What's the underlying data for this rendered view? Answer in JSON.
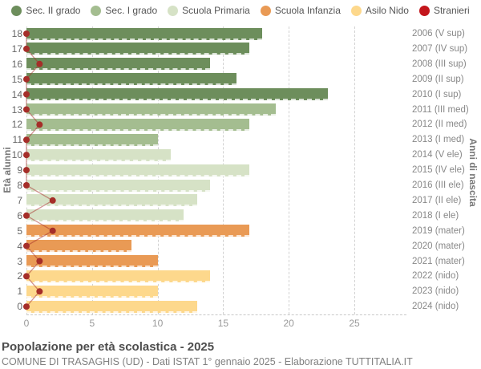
{
  "colors": {
    "sec2": "#6d8e5c",
    "sec1": "#a4bd90",
    "prim": "#d6e2c6",
    "inf": "#e99a55",
    "nido": "#fdd88c",
    "stranieri": "#c3161c",
    "stranieri_dot": "#a52e29",
    "grid": "#d2d2d2"
  },
  "legend": [
    {
      "label": "Sec. II grado",
      "color_key": "sec2"
    },
    {
      "label": "Sec. I grado",
      "color_key": "sec1"
    },
    {
      "label": "Scuola Primaria",
      "color_key": "prim"
    },
    {
      "label": "Scuola Infanzia",
      "color_key": "inf"
    },
    {
      "label": "Asilo Nido",
      "color_key": "nido"
    },
    {
      "label": "Stranieri",
      "color_key": "stranieri"
    }
  ],
  "axis_titles": {
    "left": "Età alunni",
    "right": "Anni di nascita"
  },
  "chart_data": {
    "type": "bar",
    "orientation": "horizontal",
    "title": "Popolazione per età scolastica - 2025",
    "subtitle": "COMUNE DI TRASAGHIS (UD) - Dati ISTAT 1° gennaio 2025 - Elaborazione TUTTITALIA.IT",
    "xlabel": "",
    "ylabel_left": "Età alunni",
    "ylabel_right": "Anni di nascita",
    "xlim": [
      0,
      25
    ],
    "x_ticks": [
      0,
      5,
      10,
      15,
      20,
      25
    ],
    "grid": "vertical-dashed",
    "legend_position": "top",
    "series_note": "value = total pupils per age; stranieri = foreign pupils (red dot line)",
    "rows": [
      {
        "age": 18,
        "year": "2006 (V sup)",
        "group": "sec2",
        "value": 18,
        "stranieri": 0
      },
      {
        "age": 17,
        "year": "2007 (IV sup)",
        "group": "sec2",
        "value": 17,
        "stranieri": 0
      },
      {
        "age": 16,
        "year": "2008 (III sup)",
        "group": "sec2",
        "value": 14,
        "stranieri": 1
      },
      {
        "age": 15,
        "year": "2009 (II sup)",
        "group": "sec2",
        "value": 16,
        "stranieri": 0
      },
      {
        "age": 14,
        "year": "2010 (I sup)",
        "group": "sec2",
        "value": 23,
        "stranieri": 0
      },
      {
        "age": 13,
        "year": "2011 (III med)",
        "group": "sec1",
        "value": 19,
        "stranieri": 0
      },
      {
        "age": 12,
        "year": "2012 (II med)",
        "group": "sec1",
        "value": 17,
        "stranieri": 1
      },
      {
        "age": 11,
        "year": "2013 (I med)",
        "group": "sec1",
        "value": 10,
        "stranieri": 0
      },
      {
        "age": 10,
        "year": "2014 (V ele)",
        "group": "prim",
        "value": 11,
        "stranieri": 0
      },
      {
        "age": 9,
        "year": "2015 (IV ele)",
        "group": "prim",
        "value": 17,
        "stranieri": 0
      },
      {
        "age": 8,
        "year": "2016 (III ele)",
        "group": "prim",
        "value": 14,
        "stranieri": 0
      },
      {
        "age": 7,
        "year": "2017 (II ele)",
        "group": "prim",
        "value": 13,
        "stranieri": 2
      },
      {
        "age": 6,
        "year": "2018 (I ele)",
        "group": "prim",
        "value": 12,
        "stranieri": 0
      },
      {
        "age": 5,
        "year": "2019 (mater)",
        "group": "inf",
        "value": 17,
        "stranieri": 2
      },
      {
        "age": 4,
        "year": "2020 (mater)",
        "group": "inf",
        "value": 8,
        "stranieri": 0
      },
      {
        "age": 3,
        "year": "2021 (mater)",
        "group": "inf",
        "value": 10,
        "stranieri": 1
      },
      {
        "age": 2,
        "year": "2022 (nido)",
        "group": "nido",
        "value": 14,
        "stranieri": 0
      },
      {
        "age": 1,
        "year": "2023 (nido)",
        "group": "nido",
        "value": 10,
        "stranieri": 1
      },
      {
        "age": 0,
        "year": "2024 (nido)",
        "group": "nido",
        "value": 13,
        "stranieri": 0
      }
    ]
  },
  "footer": {
    "title": "Popolazione per età scolastica - 2025",
    "subtitle": "COMUNE DI TRASAGHIS (UD) - Dati ISTAT 1° gennaio 2025 - Elaborazione TUTTITALIA.IT"
  }
}
